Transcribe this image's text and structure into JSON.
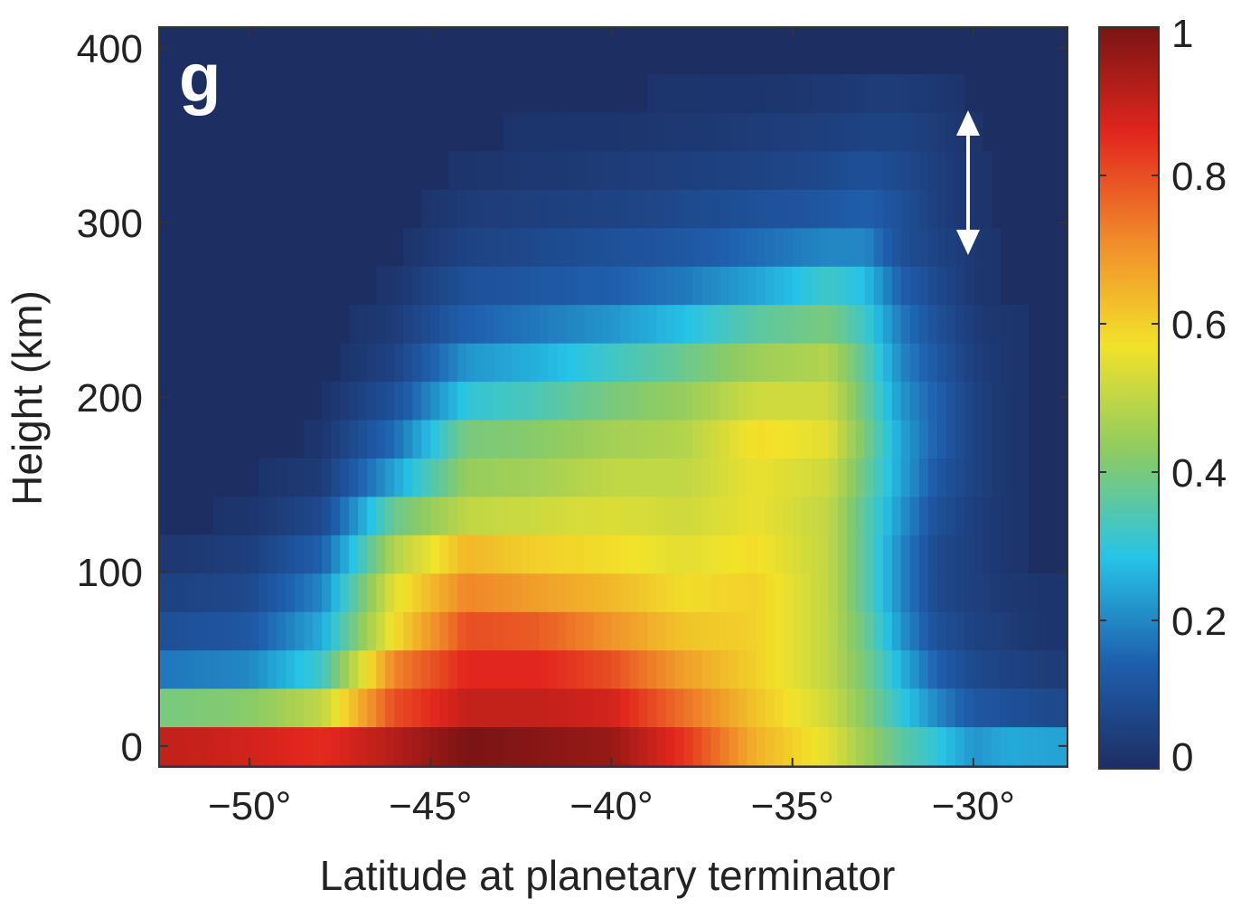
{
  "chart_data": {
    "type": "heatmap",
    "title": "",
    "panel_label": "g",
    "xlabel": "Latitude at planetary terminator",
    "ylabel": "Height (km)",
    "xlim": [
      -52.5,
      -27.4
    ],
    "ylim": [
      -12,
      412
    ],
    "x_ticks": [
      -50,
      -45,
      -40,
      -35,
      -30
    ],
    "x_tick_labels": [
      "−50°",
      "−45°",
      "−40°",
      "−35°",
      "−30°"
    ],
    "y_ticks": [
      0,
      100,
      200,
      300,
      400
    ],
    "y_tick_labels": [
      "0",
      "100",
      "200",
      "300",
      "400"
    ],
    "rows_km": [
      0,
      22,
      44,
      66,
      88,
      110,
      132,
      154,
      176,
      198,
      220,
      242,
      264,
      286,
      308,
      330,
      352,
      374
    ],
    "row_height_km": 22,
    "profile_lats": [
      -52,
      -50,
      -48,
      -46,
      -44,
      -42,
      -40,
      -38,
      -36,
      -34,
      -33,
      -32,
      -31,
      -30,
      -29,
      -28
    ],
    "profiles": [
      [
        0.9,
        0.4,
        0.18,
        0.1,
        0.06,
        0.03,
        0.01,
        0.0,
        0.0,
        0.0,
        0.0,
        0.0,
        0.0,
        0.0,
        0.0,
        0.0,
        0.0,
        0.0
      ],
      [
        0.88,
        0.42,
        0.2,
        0.12,
        0.08,
        0.05,
        0.02,
        0.01,
        0.0,
        0.0,
        0.0,
        0.0,
        0.0,
        0.0,
        0.0,
        0.0,
        0.0,
        0.0
      ],
      [
        0.85,
        0.5,
        0.32,
        0.25,
        0.2,
        0.14,
        0.08,
        0.04,
        0.02,
        0.01,
        0.0,
        0.0,
        0.0,
        0.0,
        0.0,
        0.0,
        0.0,
        0.0
      ],
      [
        0.92,
        0.8,
        0.72,
        0.58,
        0.55,
        0.48,
        0.38,
        0.24,
        0.16,
        0.1,
        0.06,
        0.04,
        0.02,
        0.01,
        0.0,
        0.0,
        0.0,
        0.0
      ],
      [
        1.0,
        0.9,
        0.86,
        0.8,
        0.72,
        0.64,
        0.5,
        0.44,
        0.4,
        0.3,
        0.22,
        0.14,
        0.1,
        0.06,
        0.04,
        0.02,
        0.01,
        0.0
      ],
      [
        0.98,
        0.9,
        0.86,
        0.78,
        0.68,
        0.6,
        0.52,
        0.46,
        0.42,
        0.34,
        0.26,
        0.18,
        0.12,
        0.08,
        0.05,
        0.03,
        0.02,
        0.01
      ],
      [
        0.96,
        0.88,
        0.8,
        0.7,
        0.64,
        0.58,
        0.54,
        0.5,
        0.46,
        0.4,
        0.32,
        0.22,
        0.14,
        0.1,
        0.06,
        0.04,
        0.02,
        0.01
      ],
      [
        0.84,
        0.75,
        0.68,
        0.62,
        0.58,
        0.55,
        0.52,
        0.5,
        0.48,
        0.44,
        0.38,
        0.28,
        0.18,
        0.12,
        0.08,
        0.05,
        0.03,
        0.02
      ],
      [
        0.65,
        0.62,
        0.6,
        0.6,
        0.6,
        0.58,
        0.56,
        0.56,
        0.58,
        0.52,
        0.45,
        0.36,
        0.24,
        0.16,
        0.1,
        0.06,
        0.04,
        0.02
      ],
      [
        0.55,
        0.52,
        0.5,
        0.5,
        0.5,
        0.5,
        0.5,
        0.52,
        0.55,
        0.52,
        0.48,
        0.4,
        0.32,
        0.2,
        0.12,
        0.08,
        0.05,
        0.03
      ],
      [
        0.45,
        0.42,
        0.4,
        0.38,
        0.36,
        0.36,
        0.36,
        0.38,
        0.4,
        0.38,
        0.36,
        0.32,
        0.28,
        0.2,
        0.14,
        0.1,
        0.06,
        0.04
      ],
      [
        0.36,
        0.3,
        0.26,
        0.22,
        0.2,
        0.2,
        0.22,
        0.24,
        0.24,
        0.22,
        0.2,
        0.18,
        0.14,
        0.1,
        0.1,
        0.08,
        0.06,
        0.04
      ],
      [
        0.3,
        0.2,
        0.14,
        0.1,
        0.08,
        0.08,
        0.1,
        0.12,
        0.14,
        0.14,
        0.12,
        0.1,
        0.08,
        0.06,
        0.05,
        0.05,
        0.04,
        0.03
      ],
      [
        0.22,
        0.12,
        0.08,
        0.06,
        0.05,
        0.05,
        0.05,
        0.06,
        0.06,
        0.06,
        0.05,
        0.04,
        0.03,
        0.03,
        0.02,
        0.02,
        0.02,
        0.01
      ],
      [
        0.25,
        0.1,
        0.06,
        0.04,
        0.03,
        0.02,
        0.02,
        0.02,
        0.02,
        0.02,
        0.02,
        0.02,
        0.01,
        0.01,
        0.01,
        0.01,
        0.0,
        0.0
      ],
      [
        0.24,
        0.08,
        0.04,
        0.02,
        0.02,
        0.01,
        0.01,
        0.01,
        0.01,
        0.01,
        0.01,
        0.01,
        0.0,
        0.0,
        0.0,
        0.0,
        0.0,
        0.0
      ]
    ],
    "colorbar": {
      "range": [
        0,
        1
      ],
      "ticks": [
        0,
        0.2,
        0.4,
        0.6,
        0.8,
        1
      ],
      "tick_labels": [
        "0",
        "0.2",
        "0.4",
        "0.6",
        "0.8",
        "1"
      ],
      "colormap": "jet",
      "stops": [
        "#1d2e63",
        "#1f5fae",
        "#27c4e6",
        "#8ecb62",
        "#f2e22a",
        "#f08a2a",
        "#e2261e",
        "#7a1414"
      ]
    },
    "annotation": "white double-headed vertical arrow spanning about 285–365 km at −30°",
    "background_color": "#1d2e63",
    "grid": false
  }
}
